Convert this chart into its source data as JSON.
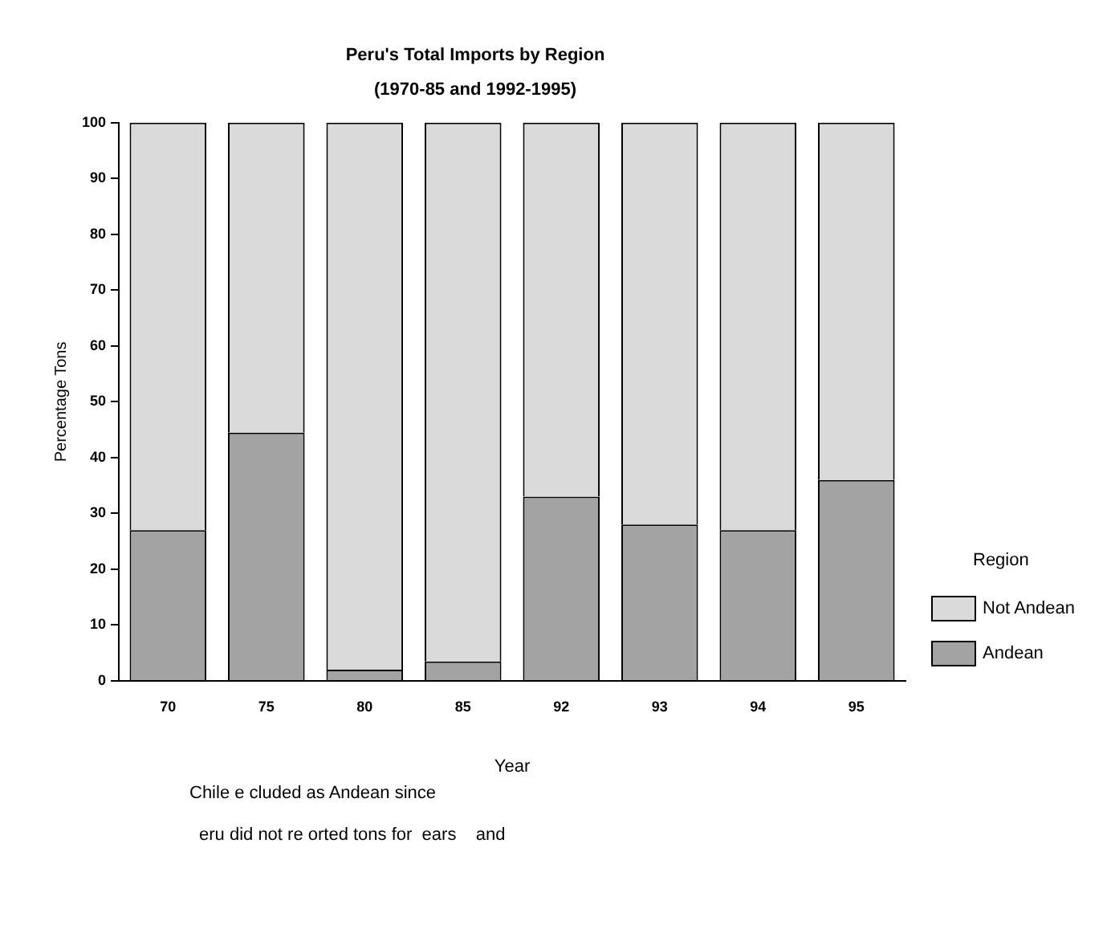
{
  "chart_data": {
    "type": "bar",
    "title": "Peru's Total Imports by Region",
    "subtitle": "(1970-85 and 1992-1995)",
    "xlabel": "Year",
    "ylabel": "Percentage Tons",
    "legend_title": "Region",
    "categories": [
      "70",
      "75",
      "80",
      "85",
      "92",
      "93",
      "94",
      "95"
    ],
    "series": [
      {
        "name": "Andean",
        "color": "#a3a3a3",
        "values": [
          27,
          44.5,
          2,
          3.5,
          33,
          28,
          27,
          36
        ]
      },
      {
        "name": "Not Andean",
        "color": "#dadada",
        "values": [
          73,
          55.5,
          98,
          96.5,
          67,
          72,
          73,
          64
        ]
      }
    ],
    "stacked": true,
    "ylim": [
      0,
      100
    ],
    "yticks": [
      0,
      10,
      20,
      30,
      40,
      50,
      60,
      70,
      80,
      90,
      100
    ],
    "grid": false,
    "legend": "right",
    "annotations": [
      "Chile e cluded as Andean since",
      "eru did not re orted tons for  ears    and"
    ]
  }
}
